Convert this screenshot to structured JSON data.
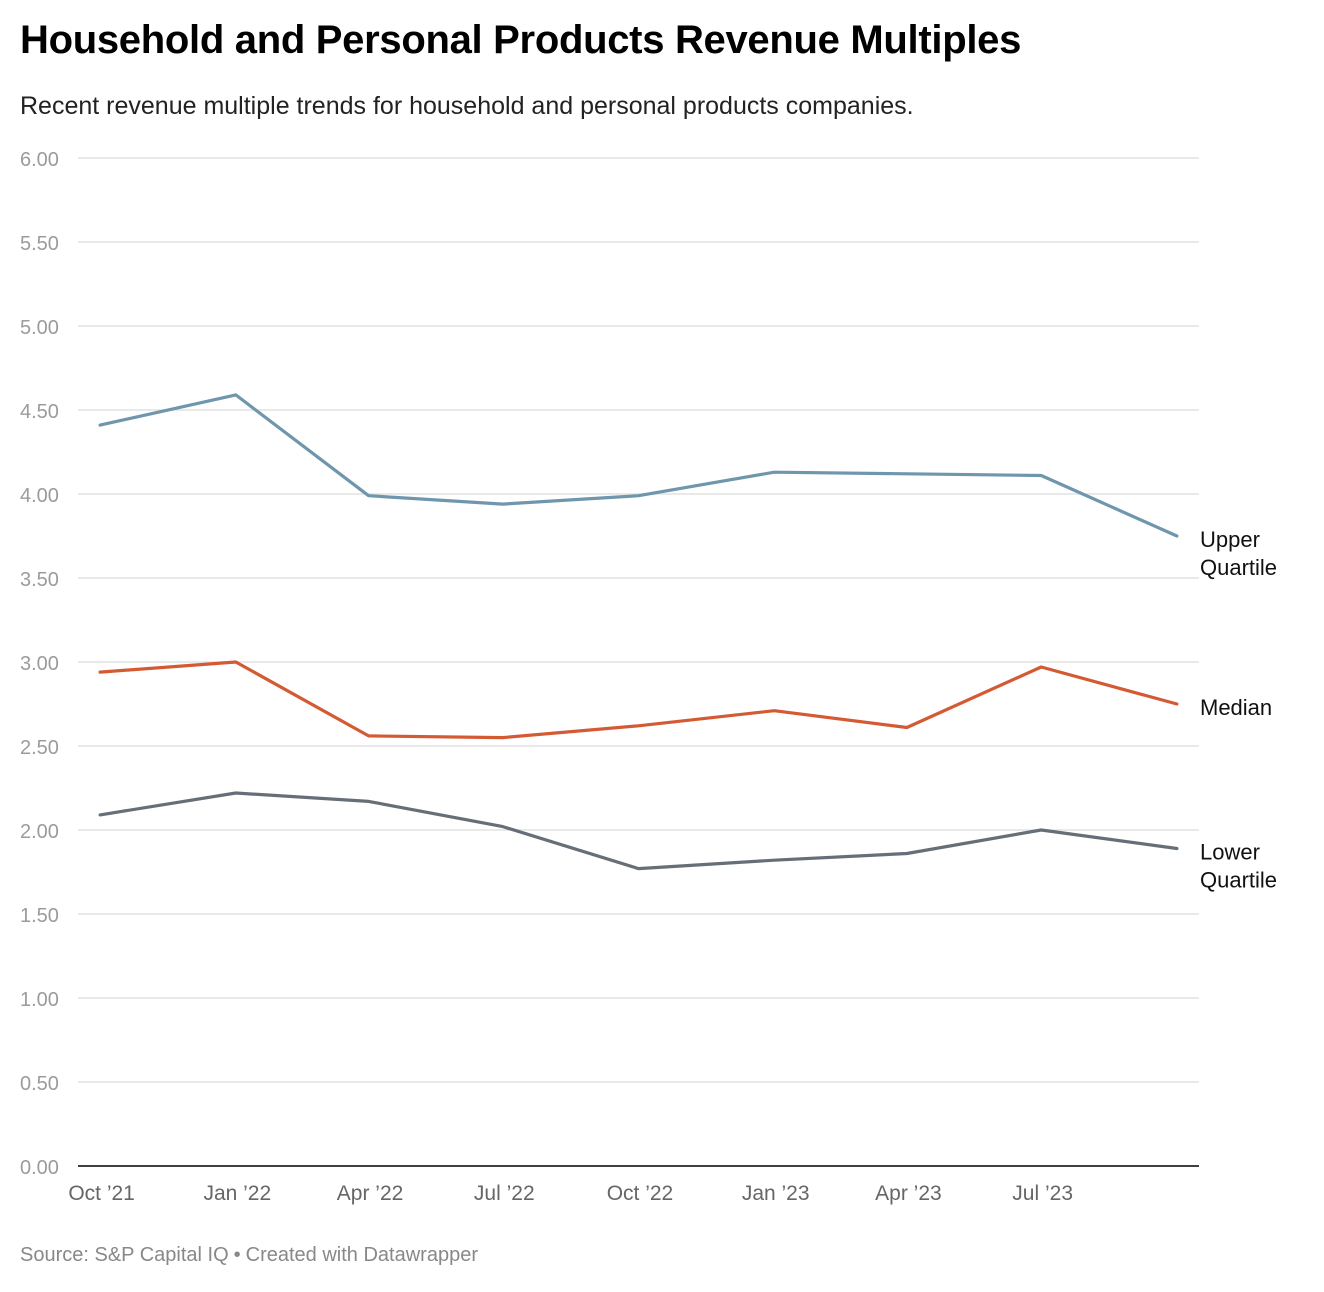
{
  "title": "Household and Personal Products Revenue Multiples",
  "subtitle": "Recent revenue multiple trends for household and personal products companies.",
  "footer": {
    "source": "Source: S&P Capital IQ",
    "separator": "•",
    "credit": "Created with Datawrapper"
  },
  "chart_data": {
    "type": "line",
    "title": "Household and Personal Products Revenue Multiples",
    "subtitle": "Recent revenue multiple trends for household and personal products companies.",
    "xlabel": "",
    "ylabel": "",
    "x": [
      "2021-09-30",
      "2021-12-31",
      "2022-03-31",
      "2022-06-30",
      "2022-09-30",
      "2022-12-31",
      "2023-03-31",
      "2023-06-30",
      "2023-09-30"
    ],
    "x_ticks": [
      {
        "date": "2021-10-01",
        "label": "Oct ’21"
      },
      {
        "date": "2022-01-01",
        "label": "Jan ’22"
      },
      {
        "date": "2022-04-01",
        "label": "Apr ’22"
      },
      {
        "date": "2022-07-01",
        "label": "Jul ’22"
      },
      {
        "date": "2022-10-01",
        "label": "Oct ’22"
      },
      {
        "date": "2023-01-01",
        "label": "Jan ’23"
      },
      {
        "date": "2023-04-01",
        "label": "Apr ’23"
      },
      {
        "date": "2023-07-01",
        "label": "Jul ’23"
      }
    ],
    "y_ticks": [
      "0.00",
      "0.50",
      "1.00",
      "1.50",
      "2.00",
      "2.50",
      "3.00",
      "3.50",
      "4.00",
      "4.50",
      "5.00",
      "5.50",
      "6.00"
    ],
    "ylim": [
      0,
      6
    ],
    "grid": true,
    "legend": "direct labels at line ends",
    "series": [
      {
        "name": "Upper Quartile",
        "label_lines": [
          "Upper",
          "Quartile"
        ],
        "color": "#6f96ad",
        "values": [
          4.41,
          4.59,
          3.99,
          3.94,
          3.99,
          4.13,
          4.12,
          4.11,
          3.75
        ]
      },
      {
        "name": "Median",
        "label_lines": [
          "Median"
        ],
        "color": "#d35a33",
        "values": [
          2.94,
          3.0,
          2.56,
          2.55,
          2.62,
          2.71,
          2.61,
          2.97,
          2.75
        ]
      },
      {
        "name": "Lower Quartile",
        "label_lines": [
          "Lower",
          "Quartile"
        ],
        "color": "#666e77",
        "values": [
          2.09,
          2.22,
          2.17,
          2.02,
          1.77,
          1.82,
          1.86,
          2.0,
          1.89
        ]
      }
    ]
  }
}
